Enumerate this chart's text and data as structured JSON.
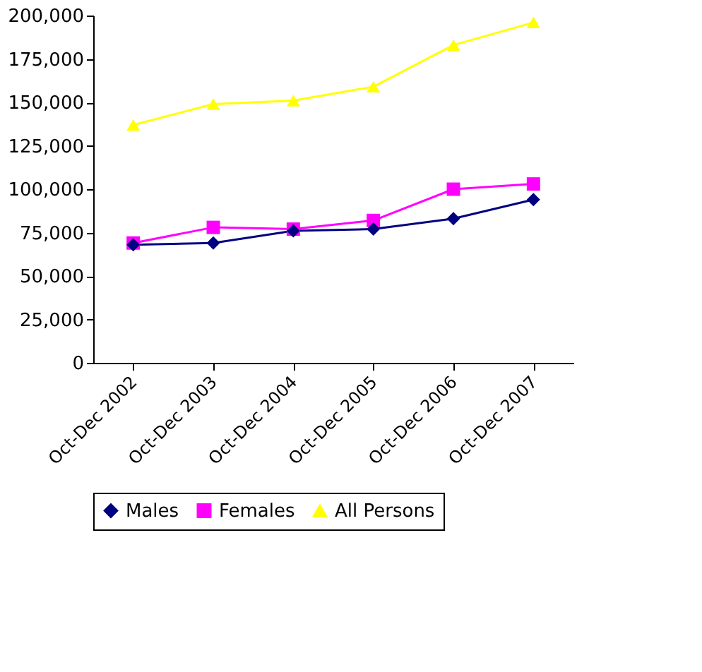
{
  "chart_data": {
    "type": "line",
    "categories": [
      "Oct-Dec 2002",
      "Oct-Dec 2003",
      "Oct-Dec 2004",
      "Oct-Dec 2005",
      "Oct-Dec 2006",
      "Oct-Dec 2007"
    ],
    "series": [
      {
        "name": "Males",
        "color": "#000080",
        "marker": "diamond",
        "values": [
          68000,
          69000,
          76000,
          77000,
          83000,
          94000
        ]
      },
      {
        "name": "Females",
        "color": "#ff00ff",
        "marker": "square",
        "values": [
          69000,
          78000,
          77000,
          82000,
          100000,
          103000
        ]
      },
      {
        "name": "All Persons",
        "color": "#ffff00",
        "marker": "triangle",
        "values": [
          137000,
          149000,
          151000,
          159000,
          183000,
          196000
        ]
      }
    ],
    "ylim": [
      0,
      200000
    ],
    "yticks": [
      0,
      {
        "value": 25000,
        "label": "25,000"
      },
      {
        "value": 50000,
        "label": "50,000"
      },
      {
        "value": 75000,
        "label": "75,000"
      },
      {
        "value": 100000,
        "label": "100,000"
      },
      {
        "value": 125000,
        "label": "125,000"
      },
      {
        "value": 150000,
        "label": "150,000"
      },
      {
        "value": 175000,
        "label": "175,000"
      },
      {
        "value": 200000,
        "label": "200,000"
      }
    ],
    "grid": false,
    "legend": "bottom",
    "line_style": "solid"
  }
}
